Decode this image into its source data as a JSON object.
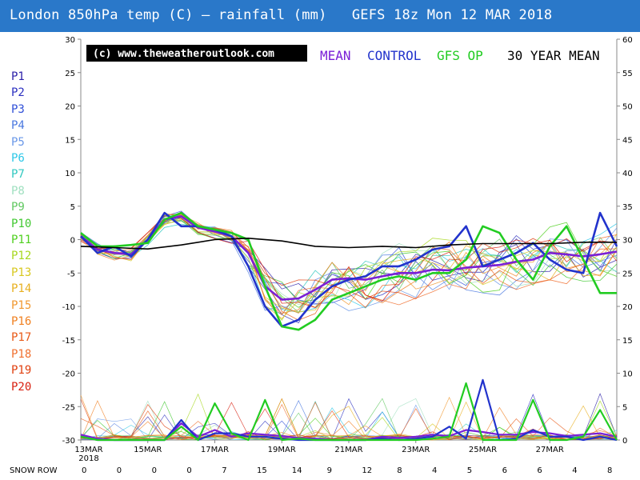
{
  "title": "London 850hPa temp (C) — rainfall (mm)   GEFS 18z Mon 12 MAR 2018",
  "copyright": "(c) www.theweatheroutlook.com",
  "legend": {
    "mean": "MEAN",
    "control": "CONTROL",
    "gfs_op": "GFS OP",
    "thirty_year": "30 YEAR MEAN"
  },
  "colors": {
    "title_bg": "#2a78c9",
    "mean": "#7a1fd6",
    "control": "#2233cc",
    "gfs_op": "#22cc22",
    "thirty_year": "#000000"
  },
  "members": [
    {
      "label": "P1",
      "color": "#2b1fa8"
    },
    {
      "label": "P2",
      "color": "#2b2fc0"
    },
    {
      "label": "P3",
      "color": "#3050d8"
    },
    {
      "label": "P4",
      "color": "#4a78e0"
    },
    {
      "label": "P5",
      "color": "#6a98e8"
    },
    {
      "label": "P6",
      "color": "#2ec8e8"
    },
    {
      "label": "P7",
      "color": "#30c8c0"
    },
    {
      "label": "P8",
      "color": "#a0e0c0"
    },
    {
      "label": "P9",
      "color": "#60c860"
    },
    {
      "label": "P10",
      "color": "#40c830"
    },
    {
      "label": "P11",
      "color": "#50d020"
    },
    {
      "label": "P12",
      "color": "#a8d820"
    },
    {
      "label": "P13",
      "color": "#d8c820"
    },
    {
      "label": "P14",
      "color": "#e8b020"
    },
    {
      "label": "P15",
      "color": "#f09830"
    },
    {
      "label": "P16",
      "color": "#f08020"
    },
    {
      "label": "P17",
      "color": "#e85a18"
    },
    {
      "label": "P18",
      "color": "#f07030"
    },
    {
      "label": "P19",
      "color": "#e04010"
    },
    {
      "label": "P20",
      "color": "#d82010"
    }
  ],
  "snow_row": {
    "label": "SNOW ROW",
    "values": [
      "0",
      "0",
      "0",
      "0",
      "7",
      "15",
      "14",
      "9",
      "12",
      "8",
      "4",
      "5",
      "6",
      "6",
      "4",
      "8"
    ]
  },
  "chart_data": {
    "type": "line",
    "x_ticks": [
      "13MAR\n2018",
      "15MAR",
      "17MAR",
      "19MAR",
      "21MAR",
      "23MAR",
      "25MAR",
      "27MAR"
    ],
    "y_left": {
      "label": "850hPa temp (C)",
      "ticks": [
        30,
        25,
        20,
        15,
        10,
        5,
        0,
        -5,
        -10,
        -15,
        -20,
        -25,
        -30
      ],
      "ylim": [
        -30,
        30
      ]
    },
    "y_right": {
      "label": "rainfall (mm)",
      "ticks": [
        60,
        55,
        50,
        45,
        40,
        35,
        30,
        25,
        20,
        15,
        10,
        5,
        0
      ],
      "ylim": [
        0,
        60
      ]
    },
    "x_days_range": [
      0,
      16
    ],
    "series": [
      {
        "name": "MEAN",
        "color": "#7a1fd6",
        "width": 2.6,
        "x": [
          0,
          0.5,
          1,
          1.5,
          2,
          2.5,
          3,
          3.5,
          4,
          4.5,
          5,
          5.5,
          6,
          6.5,
          7,
          7.5,
          8,
          8.5,
          9,
          9.5,
          10,
          10.5,
          11,
          11.5,
          12,
          12.5,
          13,
          13.5,
          14,
          14.5,
          15,
          15.5,
          16
        ],
        "y": [
          0.5,
          -1.5,
          -2,
          -2.2,
          0,
          3,
          3.5,
          1.8,
          1.2,
          0.5,
          -2,
          -7,
          -9,
          -8.8,
          -7.5,
          -6,
          -5.8,
          -6,
          -5.5,
          -5,
          -5,
          -4.5,
          -4.6,
          -4.2,
          -4,
          -3.8,
          -3.3,
          -3,
          -2,
          -2.2,
          -2.5,
          -2.2,
          -1.8
        ]
      },
      {
        "name": "CONTROL",
        "color": "#2233cc",
        "width": 2.6,
        "x": [
          0,
          0.5,
          1,
          1.5,
          2,
          2.5,
          3,
          3.5,
          4,
          4.5,
          5,
          5.5,
          6,
          6.5,
          7,
          7.5,
          8,
          8.5,
          9,
          9.5,
          10,
          10.5,
          11,
          11.5,
          12,
          12.5,
          13,
          13.5,
          14,
          14.5,
          15,
          15.5,
          16
        ],
        "y": [
          0.5,
          -2,
          -1,
          -2.5,
          0,
          4,
          2,
          2,
          1.5,
          0.5,
          -4,
          -10,
          -13,
          -12,
          -9,
          -7,
          -6,
          -5.5,
          -4,
          -4,
          -3,
          -1.5,
          -1,
          2,
          -4,
          -3,
          -2,
          -0.5,
          -3,
          -4.5,
          -5,
          4,
          -1
        ]
      },
      {
        "name": "GFS OP",
        "color": "#22cc22",
        "width": 2.6,
        "x": [
          0,
          0.5,
          1,
          1.5,
          2,
          2.5,
          3,
          3.5,
          4,
          4.5,
          5,
          5.5,
          6,
          6.5,
          7,
          7.5,
          8,
          8.5,
          9,
          9.5,
          10,
          10.5,
          11,
          11.5,
          12,
          12.5,
          13,
          13.5,
          14,
          14.5,
          15,
          15.5,
          16
        ],
        "y": [
          1,
          -1,
          -1,
          -0.8,
          -0.5,
          3,
          4,
          2,
          1.5,
          1,
          0,
          -7,
          -13,
          -13.5,
          -12,
          -9,
          -8,
          -7,
          -6,
          -5.5,
          -6,
          -5,
          -5,
          -3,
          2,
          1,
          -3,
          -6,
          -1,
          2,
          -3,
          -8,
          -8
        ]
      },
      {
        "name": "30 YEAR MEAN",
        "color": "#000000",
        "width": 1.6,
        "x": [
          0,
          1,
          2,
          3,
          4,
          5,
          6,
          7,
          8,
          9,
          10,
          11,
          12,
          13,
          14,
          15,
          16
        ],
        "y": [
          -1,
          -1.2,
          -1.4,
          -0.8,
          0,
          0.2,
          -0.2,
          -1,
          -1.2,
          -1,
          -1.2,
          -0.8,
          -0.6,
          -0.6,
          -0.6,
          -0.4,
          -0.4
        ]
      },
      {
        "name": "MEAN rain",
        "color": "#7a1fd6",
        "width": 2.2,
        "axis": "right",
        "x": [
          0,
          0.5,
          1,
          1.5,
          2,
          2.5,
          3,
          3.5,
          4,
          4.5,
          5,
          5.5,
          6,
          6.5,
          7,
          7.5,
          8,
          8.5,
          9,
          9.5,
          10,
          10.5,
          11,
          11.5,
          12,
          12.5,
          13,
          13.5,
          14,
          14.5,
          15,
          15.5,
          16
        ],
        "y": [
          0.8,
          0.2,
          0,
          0,
          0,
          0,
          2.5,
          0.5,
          1.5,
          0.5,
          1.0,
          0.8,
          0.6,
          0.3,
          0.2,
          0,
          0,
          0,
          0.5,
          0.3,
          0.5,
          0.8,
          0.6,
          1.5,
          1.2,
          0.8,
          0.8,
          1.2,
          1.0,
          0.6,
          0.8,
          1.0,
          0.5
        ]
      },
      {
        "name": "CONTROL rain",
        "color": "#2233cc",
        "width": 2.2,
        "axis": "right",
        "x": [
          0,
          0.5,
          1,
          1.5,
          2,
          2.5,
          3,
          3.5,
          4,
          4.5,
          5,
          5.5,
          6,
          6.5,
          7,
          7.5,
          8,
          8.5,
          9,
          9.5,
          10,
          10.5,
          11,
          11.5,
          12,
          12.5,
          13,
          13.5,
          14,
          14.5,
          15,
          15.5,
          16
        ],
        "y": [
          0.5,
          0,
          0,
          0,
          0,
          0,
          3,
          0,
          1,
          1,
          0.5,
          0.5,
          0.2,
          0,
          0,
          0,
          0,
          0,
          0.2,
          0,
          0.2,
          0.5,
          2,
          0.2,
          9,
          0,
          0.2,
          1.5,
          0.5,
          0.5,
          0,
          0.5,
          0
        ]
      },
      {
        "name": "GFS OP rain",
        "color": "#22cc22",
        "width": 2.2,
        "axis": "right",
        "x": [
          0,
          0.5,
          1,
          1.5,
          2,
          2.5,
          3,
          3.5,
          4,
          4.5,
          5,
          5.5,
          6,
          6.5,
          7,
          7.5,
          8,
          8.5,
          9,
          9.5,
          10,
          10.5,
          11,
          11.5,
          12,
          12.5,
          13,
          13.5,
          14,
          14.5,
          15,
          15.5,
          16
        ],
        "y": [
          0.5,
          0,
          0,
          0,
          0,
          0,
          2,
          0,
          5.5,
          1,
          0,
          6,
          0,
          0.2,
          0,
          0,
          0,
          0,
          0,
          0,
          0,
          0.2,
          0.5,
          8.5,
          0,
          0,
          0,
          6,
          0,
          0,
          0.5,
          4.5,
          0
        ]
      }
    ],
    "grid": false
  }
}
